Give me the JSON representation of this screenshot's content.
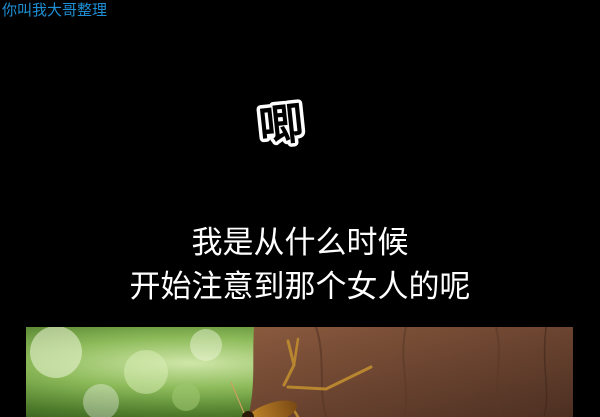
{
  "watermark": "你叫我大哥整理",
  "sound_effect": "唧",
  "narration": {
    "line1": "我是从什么时候",
    "line2": "开始注意到那个女人的呢"
  },
  "colors": {
    "background": "#000000",
    "watermark": "#1e8fd4",
    "text": "#ffffff"
  },
  "scene": {
    "subject": "cricket-on-tree-trunk-illustration"
  }
}
